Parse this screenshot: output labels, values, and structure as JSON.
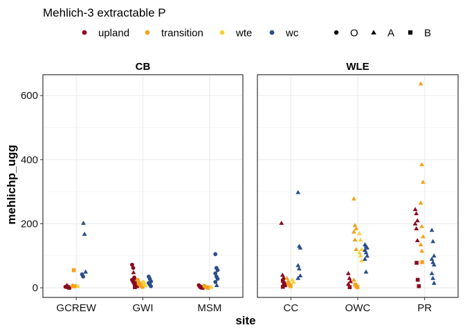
{
  "chart_data": {
    "type": "scatter",
    "title": "Mehlich-3 extractable P",
    "xlabel": "site",
    "ylabel": "mehlichp_ugg",
    "ylim": [
      -30,
      665
    ],
    "yticks": [
      0,
      200,
      400,
      600
    ],
    "grid": true,
    "legend_position": "top",
    "color_legend": [
      {
        "name": "upland",
        "color": "#8B0A1E"
      },
      {
        "name": "transition",
        "color": "#F5A21B"
      },
      {
        "name": "wte",
        "color": "#F7D13A"
      },
      {
        "name": "wc",
        "color": "#2A4D8A"
      }
    ],
    "shape_legend": [
      {
        "name": "O",
        "shape": "circle"
      },
      {
        "name": "A",
        "shape": "triangle"
      },
      {
        "name": "B",
        "shape": "square"
      }
    ],
    "panels": [
      {
        "name": "CB",
        "sites": [
          "GCREW",
          "GWI",
          "MSM"
        ],
        "points": [
          {
            "site": "GCREW",
            "transect": "upland",
            "horizon": "A",
            "y": [
              8,
              5
            ]
          },
          {
            "site": "GCREW",
            "transect": "upland",
            "horizon": "O",
            "y": [
              3
            ]
          },
          {
            "site": "GCREW",
            "transect": "upland",
            "horizon": "B",
            "y": [
              2,
              0
            ]
          },
          {
            "site": "GCREW",
            "transect": "transition",
            "horizon": "A",
            "y": [
              8,
              4
            ]
          },
          {
            "site": "GCREW",
            "transect": "transition",
            "horizon": "B",
            "y": [
              55,
              5
            ]
          },
          {
            "site": "GCREW",
            "transect": "wte",
            "horizon": "A",
            "y": [
              5
            ]
          },
          {
            "site": "GCREW",
            "transect": "wc",
            "horizon": "A",
            "y": [
              202,
              168,
              50
            ]
          },
          {
            "site": "GCREW",
            "transect": "wc",
            "horizon": "O",
            "y": [
              42,
              35
            ]
          },
          {
            "site": "GWI",
            "transect": "upland",
            "horizon": "O",
            "y": [
              72,
              62,
              32,
              25,
              18,
              12
            ]
          },
          {
            "site": "GWI",
            "transect": "upland",
            "horizon": "A",
            "y": [
              48,
              28
            ]
          },
          {
            "site": "GWI",
            "transect": "upland",
            "horizon": "B",
            "y": [
              15,
              10,
              5,
              2
            ]
          },
          {
            "site": "GWI",
            "transect": "transition",
            "horizon": "O",
            "y": [
              25,
              12
            ]
          },
          {
            "site": "GWI",
            "transect": "transition",
            "horizon": "A",
            "y": [
              20,
              15,
              8
            ]
          },
          {
            "site": "GWI",
            "transect": "transition",
            "horizon": "B",
            "y": [
              10,
              6,
              3
            ]
          },
          {
            "site": "GWI",
            "transect": "wte",
            "horizon": "O",
            "y": [
              18,
              10
            ]
          },
          {
            "site": "GWI",
            "transect": "wte",
            "horizon": "A",
            "y": [
              14,
              8
            ]
          },
          {
            "site": "GWI",
            "transect": "wc",
            "horizon": "O",
            "y": [
              35,
              28,
              20,
              15,
              10,
              5
            ]
          },
          {
            "site": "MSM",
            "transect": "upland",
            "horizon": "O",
            "y": [
              8,
              5,
              3
            ]
          },
          {
            "site": "MSM",
            "transect": "upland",
            "horizon": "A",
            "y": [
              4,
              2
            ]
          },
          {
            "site": "MSM",
            "transect": "upland",
            "horizon": "B",
            "y": [
              1,
              0
            ]
          },
          {
            "site": "MSM",
            "transect": "transition",
            "horizon": "O",
            "y": [
              6,
              3
            ]
          },
          {
            "site": "MSM",
            "transect": "transition",
            "horizon": "A",
            "y": [
              4
            ]
          },
          {
            "site": "MSM",
            "transect": "transition",
            "horizon": "B",
            "y": [
              2,
              0
            ]
          },
          {
            "site": "MSM",
            "transect": "wte",
            "horizon": "A",
            "y": [
              3
            ]
          },
          {
            "site": "MSM",
            "transect": "wc",
            "horizon": "O",
            "y": [
              105,
              62,
              55,
              45,
              35,
              28,
              18
            ]
          },
          {
            "site": "MSM",
            "transect": "wc",
            "horizon": "A",
            "y": [
              8
            ]
          }
        ]
      },
      {
        "name": "WLE",
        "sites": [
          "CC",
          "OWC",
          "PR"
        ],
        "points": [
          {
            "site": "CC",
            "transect": "upland",
            "horizon": "A",
            "y": [
              202,
              40,
              32
            ]
          },
          {
            "site": "CC",
            "transect": "upland",
            "horizon": "B",
            "y": [
              22,
              14,
              8,
              3
            ]
          },
          {
            "site": "CC",
            "transect": "transition",
            "horizon": "A",
            "y": [
              30,
              20
            ]
          },
          {
            "site": "CC",
            "transect": "transition",
            "horizon": "B",
            "y": [
              15,
              10,
              5
            ]
          },
          {
            "site": "CC",
            "transect": "wte",
            "horizon": "A",
            "y": [
              25,
              18
            ]
          },
          {
            "site": "CC",
            "transect": "wc",
            "horizon": "A",
            "y": [
              298,
              130,
              125,
              70,
              60,
              38,
              30
            ]
          },
          {
            "site": "OWC",
            "transect": "upland",
            "horizon": "A",
            "y": [
              45,
              30,
              20,
              12
            ]
          },
          {
            "site": "OWC",
            "transect": "upland",
            "horizon": "B",
            "y": [
              2
            ]
          },
          {
            "site": "OWC",
            "transect": "transition",
            "horizon": "A",
            "y": [
              278,
              195,
              185,
              175,
              150,
              120,
              25
            ]
          },
          {
            "site": "OWC",
            "transect": "transition",
            "horizon": "B",
            "y": [
              10,
              5,
              2
            ]
          },
          {
            "site": "OWC",
            "transect": "wte",
            "horizon": "A",
            "y": [
              170,
              150,
              120,
              110,
              100,
              85
            ]
          },
          {
            "site": "OWC",
            "transect": "wc",
            "horizon": "A",
            "y": [
              135,
              130,
              125,
              118,
              110,
              100,
              90,
              50
            ]
          },
          {
            "site": "PR",
            "transect": "upland",
            "horizon": "A",
            "y": [
              245,
              232,
              210,
              200,
              185,
              148
            ]
          },
          {
            "site": "PR",
            "transect": "upland",
            "horizon": "B",
            "y": [
              78,
              25,
              5
            ]
          },
          {
            "site": "PR",
            "transect": "transition",
            "horizon": "A",
            "y": [
              637,
              385,
              330,
              265,
              192,
              160,
              135,
              115
            ]
          },
          {
            "site": "PR",
            "transect": "transition",
            "horizon": "B",
            "y": [
              80
            ]
          },
          {
            "site": "PR",
            "transect": "wc",
            "horizon": "A",
            "y": [
              180,
              145,
              100,
              90,
              80,
              72,
              45,
              30,
              15
            ]
          }
        ]
      }
    ]
  }
}
